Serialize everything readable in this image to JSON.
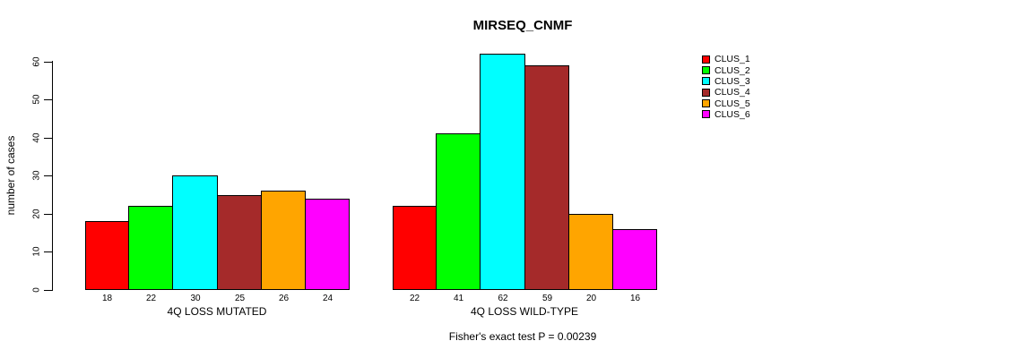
{
  "chart_data": {
    "type": "bar",
    "title": "MIRSEQ_CNMF",
    "ylabel": "number of cases",
    "ylim": [
      0,
      62
    ],
    "yticks": [
      0,
      10,
      20,
      30,
      40,
      50,
      60
    ],
    "series_labels": [
      "CLUS_1",
      "CLUS_2",
      "CLUS_3",
      "CLUS_4",
      "CLUS_5",
      "CLUS_6"
    ],
    "series_colors": [
      "#FF0000",
      "#00FF00",
      "#00FFFF",
      "#A52A2A",
      "#FFA500",
      "#FF00FF"
    ],
    "groups": [
      {
        "label": "4Q LOSS MUTATED",
        "values": [
          18,
          22,
          30,
          25,
          26,
          24
        ]
      },
      {
        "label": "4Q LOSS WILD-TYPE",
        "values": [
          22,
          41,
          62,
          59,
          20,
          16
        ]
      }
    ],
    "annotation": "Fisher's exact test P = 0.00239",
    "legend_position": "right",
    "grid": false,
    "background": "#FFFFFF",
    "bar_border_color": "#000000",
    "text_color": "#000000"
  }
}
